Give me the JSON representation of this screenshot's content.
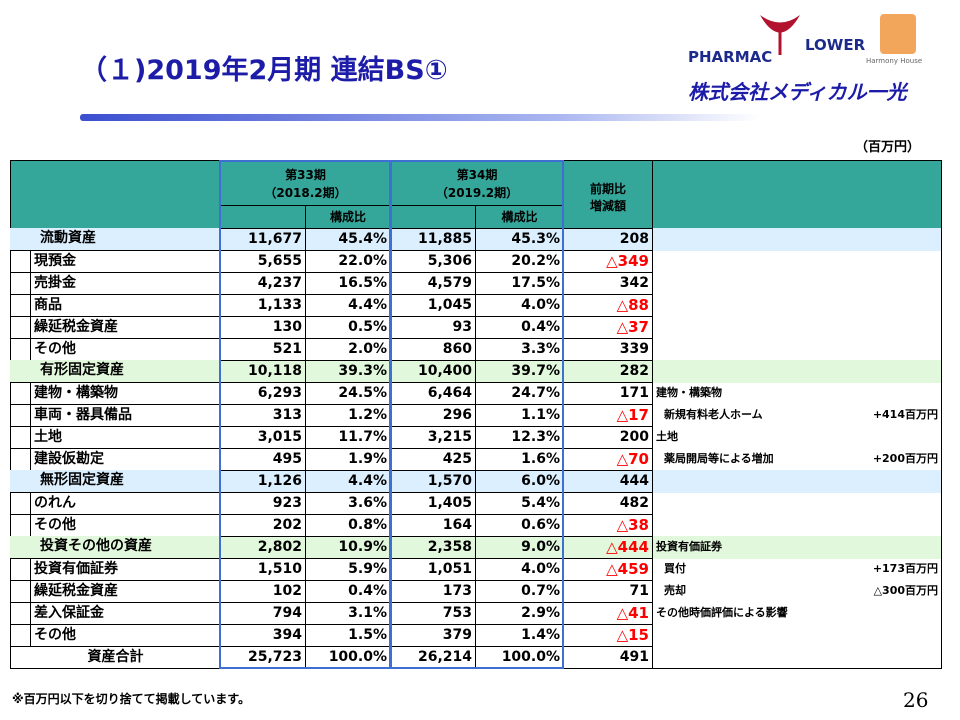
{
  "header": {
    "title": "（１)2019年2月期 連結BS①",
    "logo_left": "PHARMAC",
    "logo_right": "LOWER",
    "logo_sub": "Harmony House",
    "company": "株式会社メディカル一光"
  },
  "unit": "（百万円）",
  "table": {
    "head": {
      "period1": "第33期",
      "period1_sub": "（2018.2期）",
      "period2": "第34期",
      "period2_sub": "（2019.2期）",
      "ratio1": "構成比",
      "ratio2": "構成比",
      "change": "前期比",
      "change_sub": "増減額"
    },
    "rows": [
      {
        "label": "流動資産",
        "v33": "11,677",
        "r33": "45.4%",
        "v34": "11,885",
        "r34": "45.3%",
        "diff": "208",
        "shade": "#dcefff"
      },
      {
        "label": "現預金",
        "v33": "5,655",
        "r33": "22.0%",
        "v34": "5,306",
        "r34": "20.2%",
        "diff": "△349"
      },
      {
        "label": "売掛金",
        "v33": "4,237",
        "r33": "16.5%",
        "v34": "4,579",
        "r34": "17.5%",
        "diff": "342"
      },
      {
        "label": "商品",
        "v33": "1,133",
        "r33": "4.4%",
        "v34": "1,045",
        "r34": "4.0%",
        "diff": "△88"
      },
      {
        "label": "繰延税金資産",
        "v33": "130",
        "r33": "0.5%",
        "v34": "93",
        "r34": "0.4%",
        "diff": "△37"
      },
      {
        "label": "その他",
        "v33": "521",
        "r33": "2.0%",
        "v34": "860",
        "r34": "3.3%",
        "diff": "339"
      },
      {
        "label": "有形固定資産",
        "v33": "10,118",
        "r33": "39.3%",
        "v34": "10,400",
        "r34": "39.7%",
        "diff": "282",
        "shade": "#e2f8dc"
      },
      {
        "label": "建物・構築物",
        "v33": "6,293",
        "r33": "24.5%",
        "v34": "6,464",
        "r34": "24.7%",
        "diff": "171",
        "note": "建物・構築物"
      },
      {
        "label": "車両・器具備品",
        "v33": "313",
        "r33": "1.2%",
        "v34": "296",
        "r34": "1.1%",
        "diff": "△17",
        "note": "新規有料老人ホーム",
        "amount": "+414百万円"
      },
      {
        "label": "土地",
        "v33": "3,015",
        "r33": "11.7%",
        "v34": "3,215",
        "r34": "12.3%",
        "diff": "200",
        "note": "土地"
      },
      {
        "label": "建設仮勘定",
        "v33": "495",
        "r33": "1.9%",
        "v34": "425",
        "r34": "1.6%",
        "diff": "△70",
        "note": "薬局開局等による増加",
        "amount": "+200百万円"
      },
      {
        "label": "無形固定資産",
        "v33": "1,126",
        "r33": "4.4%",
        "v34": "1,570",
        "r34": "6.0%",
        "diff": "444",
        "shade": "#dcefff"
      },
      {
        "label": "のれん",
        "v33": "923",
        "r33": "3.6%",
        "v34": "1,405",
        "r34": "5.4%",
        "diff": "482"
      },
      {
        "label": "その他",
        "v33": "202",
        "r33": "0.8%",
        "v34": "164",
        "r34": "0.6%",
        "diff": "△38"
      },
      {
        "label": "投資その他の資産",
        "v33": "2,802",
        "r33": "10.9%",
        "v34": "2,358",
        "r34": "9.0%",
        "diff": "△444",
        "note": "投資有価証券",
        "shade": "#e2f8dc"
      },
      {
        "label": "投資有価証券",
        "v33": "1,510",
        "r33": "5.9%",
        "v34": "1,051",
        "r34": "4.0%",
        "diff": "△459",
        "note": "買付",
        "amount": "+173百万円"
      },
      {
        "label": "繰延税金資産",
        "v33": "102",
        "r33": "0.4%",
        "v34": "173",
        "r34": "0.7%",
        "diff": "71",
        "note": "売却",
        "amount": "△300百万円"
      },
      {
        "label": "差入保証金",
        "v33": "794",
        "r33": "3.1%",
        "v34": "753",
        "r34": "2.9%",
        "diff": "△41",
        "note": "その他時価評価による影響"
      },
      {
        "label": "その他",
        "v33": "394",
        "r33": "1.5%",
        "v34": "379",
        "r34": "1.4%",
        "diff": "△15"
      },
      {
        "label": "資産合計",
        "v33": "25,723",
        "r33": "100.0%",
        "v34": "26,214",
        "r34": "100.0%",
        "diff": "491",
        "shade": "#ffffff"
      }
    ]
  },
  "footnote": "※百万円以下を切り捨てて掲載しています。",
  "page_number": "26"
}
